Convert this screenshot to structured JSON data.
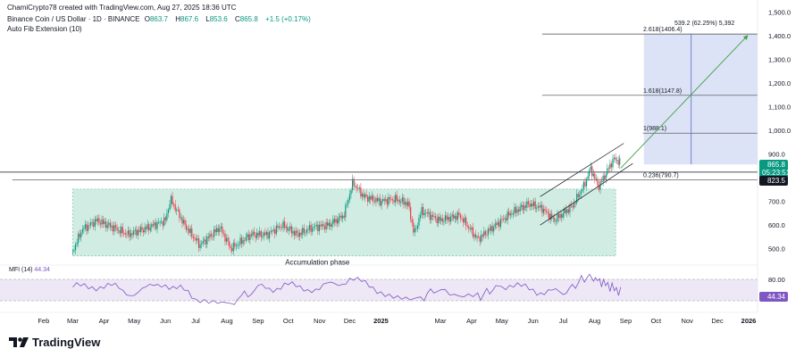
{
  "header": {
    "credit": "ChamiCrypto78 created with TradingView.com, Aug 27, 2025 18:36 UTC",
    "symbol": "Binance Coin / US Dollar · 1D · BINANCE",
    "open_label": "O",
    "open": "863.7",
    "high_label": "H",
    "high": "867.6",
    "low_label": "L",
    "low": "853.6",
    "close_label": "C",
    "close": "865.8",
    "change": "+1.5 (+0.17%)",
    "indicator": "Auto Fib Extension (10)"
  },
  "price_badges": {
    "last_price": "865.8",
    "countdown": "05:23:51",
    "support": "823.5",
    "mfi_value": "44.34"
  },
  "mfi": {
    "label": "MFI (14)",
    "value": "44.34",
    "upper_band": 80,
    "lower_band": 20,
    "upper_label": "80.00"
  },
  "brand": {
    "name": "TradingView"
  },
  "colors": {
    "accent_green": "#089981",
    "accent_red": "#f23645",
    "fib_fill": "#dde3f7",
    "accumulation_fill": "#d1ede3",
    "mfi_line": "#7e57c2",
    "mfi_fill": "#ede7f6"
  },
  "chart_data": {
    "type": "candlestick",
    "x_axis": {
      "tick_labels": [
        "Feb",
        "Mar",
        "Apr",
        "May",
        "Jun",
        "Jul",
        "Aug",
        "Sep",
        "Oct",
        "Nov",
        "Dec",
        "2025",
        "Mar",
        "Apr",
        "May",
        "Jun",
        "Jul",
        "Aug",
        "Sep",
        "Oct",
        "Nov",
        "Dec",
        "2026"
      ]
    },
    "y_axis": {
      "range": [
        450,
        1520
      ],
      "tick_values": [
        500,
        600,
        700,
        800,
        900,
        1000,
        1100,
        1200,
        1300,
        1400,
        1500
      ],
      "tick_labels": [
        "500.0",
        "600.0",
        "700.0",
        "800.0",
        "900.0",
        "1,000.0",
        "1,100.0",
        "1,200.0",
        "1,300.0",
        "1,400.0",
        "1,500.0"
      ]
    },
    "fib_levels": [
      {
        "label": "0.236(790.7)",
        "value": 790.7
      },
      {
        "label": "1(988.1)",
        "value": 988.1
      },
      {
        "label": "1.618(1147.8)",
        "value": 1147.8
      },
      {
        "label": "2.618(1406.4)",
        "value": 1406.4
      }
    ],
    "projection_label": "539.2 (62.25%) 5,392",
    "horizontal_levels": [
      823.5
    ],
    "annotations": [
      {
        "text": "Accumulation phase"
      }
    ],
    "price_path": [
      [
        "2024-03-01",
        490
      ],
      [
        "2024-03-10",
        580
      ],
      [
        "2024-03-25",
        620
      ],
      [
        "2024-04-10",
        590
      ],
      [
        "2024-04-25",
        560
      ],
      [
        "2024-05-15",
        590
      ],
      [
        "2024-06-01",
        620
      ],
      [
        "2024-06-06",
        710
      ],
      [
        "2024-06-20",
        600
      ],
      [
        "2024-07-05",
        515
      ],
      [
        "2024-07-25",
        590
      ],
      [
        "2024-08-05",
        500
      ],
      [
        "2024-08-25",
        560
      ],
      [
        "2024-09-10",
        560
      ],
      [
        "2024-09-25",
        600
      ],
      [
        "2024-10-10",
        560
      ],
      [
        "2024-10-25",
        590
      ],
      [
        "2024-11-10",
        600
      ],
      [
        "2024-11-25",
        640
      ],
      [
        "2024-12-04",
        780
      ],
      [
        "2024-12-15",
        720
      ],
      [
        "2024-12-31",
        700
      ],
      [
        "2025-01-15",
        710
      ],
      [
        "2025-01-28",
        690
      ],
      [
        "2025-02-03",
        560
      ],
      [
        "2025-02-10",
        660
      ],
      [
        "2025-02-28",
        620
      ],
      [
        "2025-03-20",
        640
      ],
      [
        "2025-04-07",
        540
      ],
      [
        "2025-04-25",
        600
      ],
      [
        "2025-05-10",
        650
      ],
      [
        "2025-05-28",
        690
      ],
      [
        "2025-06-10",
        670
      ],
      [
        "2025-06-22",
        620
      ],
      [
        "2025-07-10",
        680
      ],
      [
        "2025-07-22",
        770
      ],
      [
        "2025-07-28",
        840
      ],
      [
        "2025-08-05",
        760
      ],
      [
        "2025-08-15",
        840
      ],
      [
        "2025-08-20",
        880
      ],
      [
        "2025-08-27",
        865.8
      ]
    ],
    "mfi_path": [
      [
        "2024-03-01",
        55
      ],
      [
        "2024-04-01",
        65
      ],
      [
        "2024-05-01",
        40
      ],
      [
        "2024-06-01",
        70
      ],
      [
        "2024-07-01",
        30
      ],
      [
        "2024-08-05",
        15
      ],
      [
        "2024-09-01",
        55
      ],
      [
        "2024-10-01",
        60
      ],
      [
        "2024-11-01",
        55
      ],
      [
        "2024-12-01",
        80
      ],
      [
        "2025-01-01",
        50
      ],
      [
        "2025-02-03",
        20
      ],
      [
        "2025-03-01",
        55
      ],
      [
        "2025-04-07",
        30
      ],
      [
        "2025-05-01",
        65
      ],
      [
        "2025-06-01",
        50
      ],
      [
        "2025-07-01",
        40
      ],
      [
        "2025-07-25",
        90
      ],
      [
        "2025-08-10",
        70
      ],
      [
        "2025-08-27",
        44.34
      ]
    ]
  }
}
